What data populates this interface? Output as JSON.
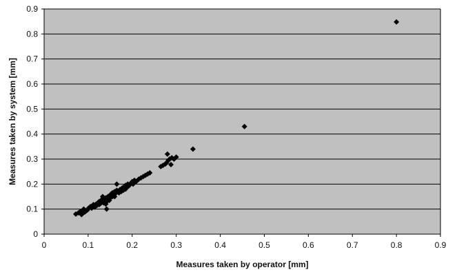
{
  "chart_data": {
    "type": "scatter",
    "title": "",
    "xlabel": "Measures taken by operator [mm]",
    "ylabel": "Measures taken by system [mm]",
    "xlim": [
      0,
      0.9
    ],
    "ylim": [
      0,
      0.9
    ],
    "x_ticks": [
      "0",
      "0.1",
      "0.2",
      "0.3",
      "0.4",
      "0.5",
      "0.6",
      "0.7",
      "0.8",
      "0.9"
    ],
    "y_ticks": [
      "0",
      "0.1",
      "0.2",
      "0.3",
      "0.4",
      "0.5",
      "0.6",
      "0.7",
      "0.8",
      "0.9"
    ],
    "grid": "horizontal",
    "legend": "none",
    "colors": {
      "plot_background": "#c0c0c0",
      "marker": "#000000",
      "gridline": "#000000"
    },
    "marker": "diamond",
    "series": [
      {
        "points": [
          [
            0.072,
            0.08
          ],
          [
            0.078,
            0.085
          ],
          [
            0.082,
            0.09
          ],
          [
            0.085,
            0.078
          ],
          [
            0.088,
            0.095
          ],
          [
            0.09,
            0.1
          ],
          [
            0.092,
            0.088
          ],
          [
            0.095,
            0.092
          ],
          [
            0.098,
            0.096
          ],
          [
            0.1,
            0.102
          ],
          [
            0.102,
            0.105
          ],
          [
            0.105,
            0.11
          ],
          [
            0.108,
            0.104
          ],
          [
            0.11,
            0.112
          ],
          [
            0.112,
            0.118
          ],
          [
            0.115,
            0.108
          ],
          [
            0.118,
            0.12
          ],
          [
            0.12,
            0.115
          ],
          [
            0.122,
            0.125
          ],
          [
            0.125,
            0.13
          ],
          [
            0.125,
            0.118
          ],
          [
            0.128,
            0.122
          ],
          [
            0.13,
            0.128
          ],
          [
            0.13,
            0.135
          ],
          [
            0.132,
            0.14
          ],
          [
            0.133,
            0.15
          ],
          [
            0.135,
            0.125
          ],
          [
            0.135,
            0.132
          ],
          [
            0.138,
            0.138
          ],
          [
            0.14,
            0.145
          ],
          [
            0.14,
            0.12
          ],
          [
            0.142,
            0.13
          ],
          [
            0.142,
            0.1
          ],
          [
            0.145,
            0.14
          ],
          [
            0.145,
            0.15
          ],
          [
            0.148,
            0.135
          ],
          [
            0.15,
            0.145
          ],
          [
            0.15,
            0.155
          ],
          [
            0.152,
            0.16
          ],
          [
            0.155,
            0.15
          ],
          [
            0.155,
            0.165
          ],
          [
            0.158,
            0.155
          ],
          [
            0.16,
            0.17
          ],
          [
            0.16,
            0.15
          ],
          [
            0.162,
            0.162
          ],
          [
            0.165,
            0.175
          ],
          [
            0.165,
            0.2
          ],
          [
            0.168,
            0.168
          ],
          [
            0.17,
            0.165
          ],
          [
            0.172,
            0.178
          ],
          [
            0.175,
            0.18
          ],
          [
            0.175,
            0.17
          ],
          [
            0.178,
            0.185
          ],
          [
            0.18,
            0.175
          ],
          [
            0.182,
            0.19
          ],
          [
            0.185,
            0.18
          ],
          [
            0.185,
            0.195
          ],
          [
            0.188,
            0.188
          ],
          [
            0.19,
            0.2
          ],
          [
            0.192,
            0.192
          ],
          [
            0.195,
            0.198
          ],
          [
            0.198,
            0.205
          ],
          [
            0.2,
            0.21
          ],
          [
            0.202,
            0.2
          ],
          [
            0.205,
            0.215
          ],
          [
            0.208,
            0.21
          ],
          [
            0.21,
            0.212
          ],
          [
            0.215,
            0.22
          ],
          [
            0.22,
            0.225
          ],
          [
            0.225,
            0.23
          ],
          [
            0.23,
            0.235
          ],
          [
            0.235,
            0.24
          ],
          [
            0.24,
            0.245
          ],
          [
            0.265,
            0.27
          ],
          [
            0.27,
            0.275
          ],
          [
            0.275,
            0.28
          ],
          [
            0.278,
            0.285
          ],
          [
            0.28,
            0.32
          ],
          [
            0.282,
            0.295
          ],
          [
            0.285,
            0.3
          ],
          [
            0.288,
            0.278
          ],
          [
            0.29,
            0.305
          ],
          [
            0.295,
            0.3
          ],
          [
            0.3,
            0.308
          ],
          [
            0.338,
            0.34
          ],
          [
            0.455,
            0.43
          ],
          [
            0.8,
            0.848
          ]
        ]
      }
    ]
  }
}
